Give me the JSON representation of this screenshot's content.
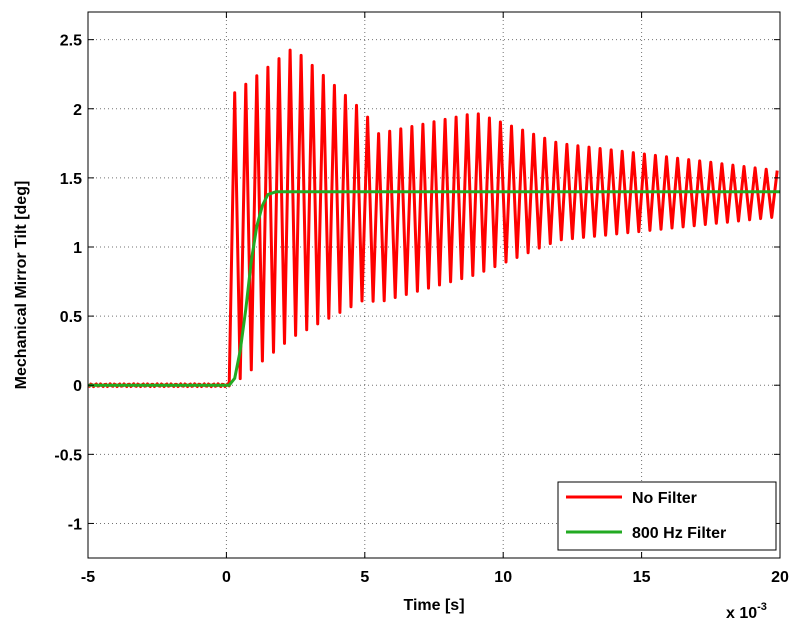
{
  "chart_data": {
    "type": "line",
    "xlabel": "Time [s]",
    "ylabel": "Mechanical Mirror Tilt [deg]",
    "x_multiplier_label": "x 10",
    "x_multiplier_exponent": "-3",
    "xlim": [
      -5,
      20
    ],
    "ylim": [
      -1.25,
      2.7
    ],
    "xticks": [
      -5,
      0,
      5,
      10,
      15,
      20
    ],
    "xtick_labels": [
      "-5",
      "0",
      "5",
      "10",
      "15",
      "20"
    ],
    "yticks": [
      -1,
      -0.5,
      0,
      0.5,
      1,
      1.5,
      2,
      2.5
    ],
    "ytick_labels": [
      "-1",
      "-0.5",
      "0",
      "0.5",
      "1",
      "1.5",
      "2",
      "2.5"
    ],
    "grid": true,
    "legend_position": "bottom-right",
    "series": [
      {
        "name": "No Filter",
        "color": "#ff0000",
        "step_time": 0.1,
        "final_value": 1.4,
        "oscillation_period": 0.4,
        "envelope_peaks": [
          {
            "t": 0.2,
            "max": 2.1,
            "min": 0.0
          },
          {
            "t": 2.4,
            "max": 2.44,
            "min": 0.35
          },
          {
            "t": 5.0,
            "max": 1.97,
            "min": 0.62
          },
          {
            "t": 5.5,
            "max": 1.82,
            "min": 0.6
          },
          {
            "t": 9.0,
            "max": 1.97,
            "min": 0.8
          },
          {
            "t": 12.0,
            "max": 1.75,
            "min": 1.05
          },
          {
            "t": 20.0,
            "max": 1.55,
            "min": 1.22
          }
        ]
      },
      {
        "name": "800 Hz Filter",
        "color": "#22aa22",
        "points": [
          [
            -5,
            0
          ],
          [
            0.1,
            0
          ],
          [
            0.3,
            0.05
          ],
          [
            0.5,
            0.25
          ],
          [
            0.7,
            0.55
          ],
          [
            0.9,
            0.9
          ],
          [
            1.1,
            1.15
          ],
          [
            1.3,
            1.3
          ],
          [
            1.5,
            1.38
          ],
          [
            1.8,
            1.4
          ],
          [
            20,
            1.4
          ]
        ]
      }
    ]
  }
}
